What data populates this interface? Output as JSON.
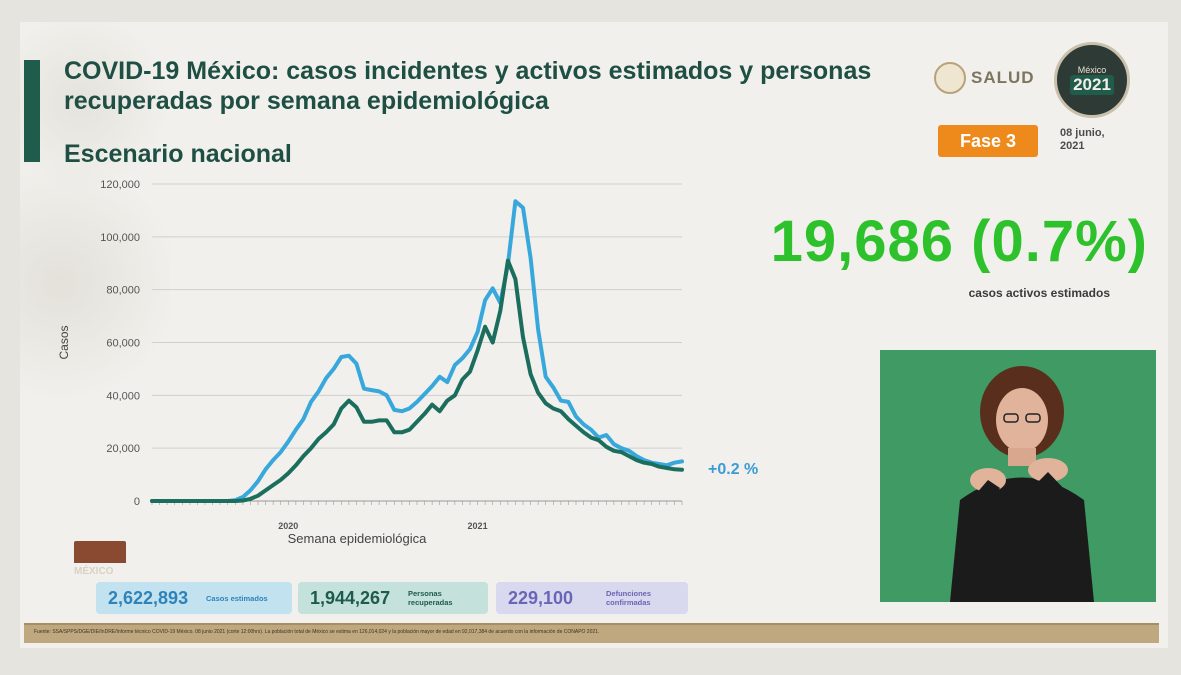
{
  "slide": {
    "title": "COVID-19 México: casos incidentes y activos estimados y personas recuperadas por semana epidemiológica",
    "subtitle": "Escenario nacional"
  },
  "logos": {
    "salud": "SALUD",
    "mexico_year": "2021",
    "mexico_word": "México",
    "mexico_small": "MÉXICO"
  },
  "phase": {
    "label": "Fase 3"
  },
  "date": {
    "line1": "08 junio,",
    "line2": "2021"
  },
  "headline": {
    "value": "19,686 (0.7%)",
    "caption": "casos activos estimados",
    "delta": "+0.2 %"
  },
  "stats": [
    {
      "value": "2,622,893",
      "label": "Casos estimados"
    },
    {
      "value": "1,944,267",
      "label": "Personas recuperadas"
    },
    {
      "value": "229,100",
      "label": "Defunciones confirmadas"
    }
  ],
  "footer": {
    "text": "Fuente: SSA/SPPS/DGE/DIE/InDRE/Informe técnico COVID-19 México. 08 junio 2021 (corte 12:00hrs). La población total de México se estima en 126,014,024 y la población mayor de edad en 92,017,384 de acuerdo con la información de CONAPO 2021."
  },
  "colors": {
    "incidentes": "#38a8dc",
    "activos": "#1b6d5d",
    "title": "#1f4f44",
    "headline": "#2dc22c",
    "phase": "#ee8a1c"
  },
  "icons": [
    "salud-seal-icon",
    "mexico-2021-logo-icon"
  ],
  "chart_data": {
    "type": "line",
    "xlabel": "Semana epidemiológica",
    "ylabel": "Casos",
    "ylim": [
      0,
      120000
    ],
    "yticks": [
      0,
      20000,
      40000,
      60000,
      80000,
      100000,
      120000
    ],
    "ytick_labels": [
      "0",
      "20,000",
      "40,000",
      "60,000",
      "80,000",
      "100,000",
      "120,000"
    ],
    "year_labels": [
      {
        "label": "2020",
        "week_index": 18
      },
      {
        "label": "2021",
        "week_index": 43
      }
    ],
    "x_count": 71,
    "grid": true,
    "series": [
      {
        "color": "#38a8dc",
        "values": [
          0,
          0,
          0,
          0,
          0,
          0,
          0,
          0,
          0,
          0,
          0,
          300,
          1500,
          4000,
          7500,
          12000,
          15500,
          18500,
          22500,
          27000,
          31000,
          37500,
          41500,
          46500,
          50000,
          54500,
          55000,
          52000,
          42500,
          42000,
          41500,
          40000,
          34500,
          34000,
          35000,
          37500,
          40500,
          43500,
          47000,
          45000,
          51500,
          54000,
          57500,
          64000,
          76000,
          80500,
          75000,
          89500,
          113500,
          111000,
          92000,
          65000,
          47000,
          43000,
          38000,
          37500,
          32000,
          29000,
          27000,
          24000,
          25000,
          21500,
          20000,
          19000,
          17000,
          15500,
          14500,
          14000,
          13500,
          14500,
          15000
        ]
      },
      {
        "color": "#1b6d5d",
        "values": [
          0,
          0,
          0,
          0,
          0,
          0,
          0,
          0,
          0,
          0,
          0,
          0,
          200,
          800,
          2000,
          4000,
          6000,
          8000,
          10500,
          13500,
          17000,
          20000,
          23500,
          26000,
          29000,
          35000,
          38000,
          35500,
          30000,
          30000,
          30500,
          30500,
          26000,
          26000,
          27000,
          30000,
          33000,
          36500,
          34000,
          38000,
          40000,
          46000,
          49000,
          57000,
          66000,
          60000,
          72000,
          91000,
          84000,
          62000,
          48000,
          41000,
          37000,
          35000,
          34000,
          31000,
          28500,
          26000,
          24000,
          23000,
          20500,
          19000,
          18500,
          17000,
          15500,
          14500,
          14000,
          13000,
          12500,
          12000,
          11800
        ]
      }
    ]
  }
}
